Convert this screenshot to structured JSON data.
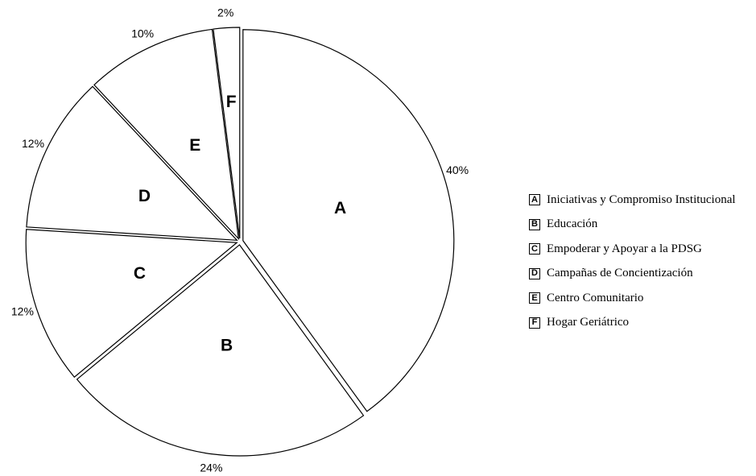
{
  "chart_data": {
    "type": "pie",
    "slices": [
      {
        "key": "A",
        "label": "Iniciativas y Compromiso Institucional",
        "value": 40,
        "value_label": "40%"
      },
      {
        "key": "B",
        "label": "Educación",
        "value": 24,
        "value_label": "24%"
      },
      {
        "key": "C",
        "label": "Empoderar y Apoyar a la PDSG",
        "value": 12,
        "value_label": "12%"
      },
      {
        "key": "D",
        "label": "Campañas de Concientización",
        "value": 12,
        "value_label": "12%"
      },
      {
        "key": "E",
        "label": "Centro Comunitario",
        "value": 10,
        "value_label": "10%"
      },
      {
        "key": "F",
        "label": "Hogar Geriátrico",
        "value": 2,
        "value_label": "2%"
      }
    ],
    "legend_position": "right",
    "slice_fill": "#ffffff",
    "slice_stroke": "#000000",
    "exploded": true
  }
}
